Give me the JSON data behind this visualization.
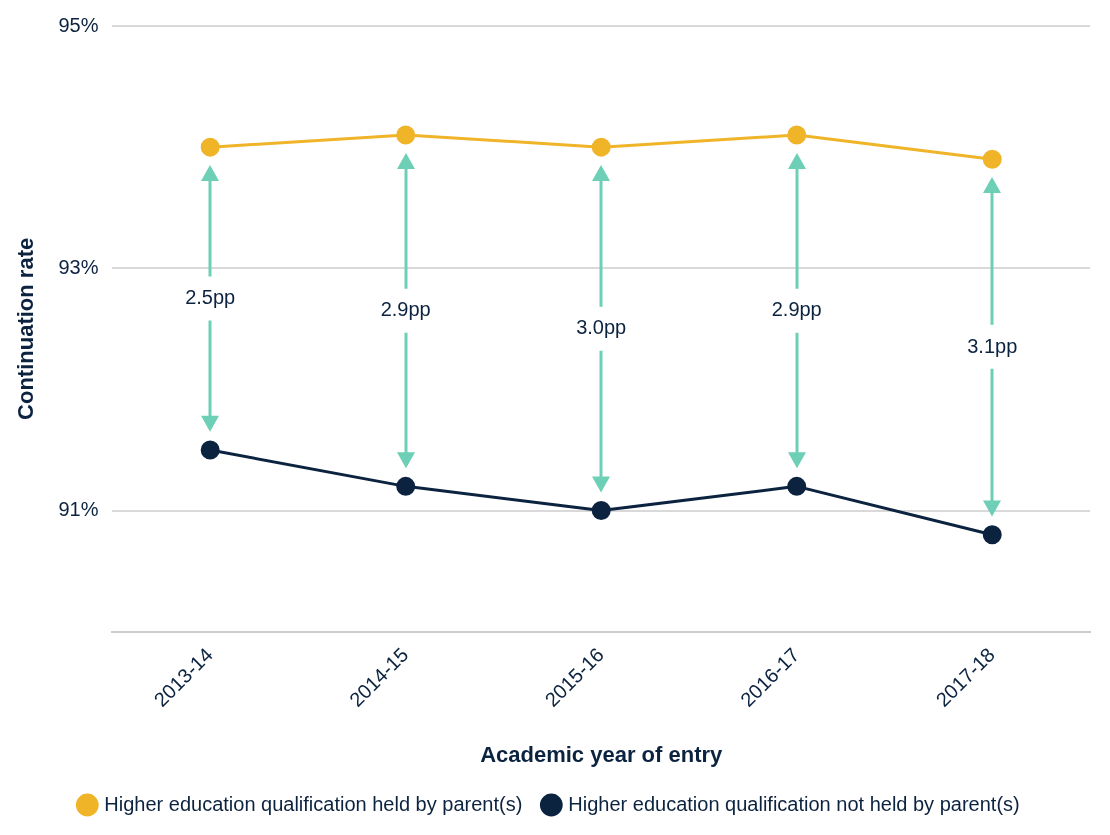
{
  "chart_data": {
    "type": "line",
    "xlabel": "Academic year of entry",
    "ylabel": "Continuation rate",
    "categories": [
      "2013-14",
      "2014-15",
      "2015-16",
      "2016-17",
      "2017-18"
    ],
    "series": [
      {
        "name": "Higher education qualification held by parent(s)",
        "color": "#f0b429",
        "values": [
          94.0,
          94.1,
          94.0,
          94.1,
          93.9
        ]
      },
      {
        "name": "Higher education qualification not held by parent(s)",
        "color": "#0c2340",
        "values": [
          91.5,
          91.2,
          91.0,
          91.2,
          90.8
        ]
      }
    ],
    "ylim": [
      90,
      95
    ],
    "yticks": [
      {
        "value": 91,
        "label": "91%"
      },
      {
        "value": 93,
        "label": "93%"
      },
      {
        "value": 95,
        "label": "95%"
      }
    ],
    "grid": "y",
    "legend": "bottom",
    "marker": "circle",
    "line_style": "solid",
    "annotations": [
      "2.5pp",
      "2.9pp",
      "3.0pp",
      "2.9pp",
      "3.1pp"
    ]
  }
}
